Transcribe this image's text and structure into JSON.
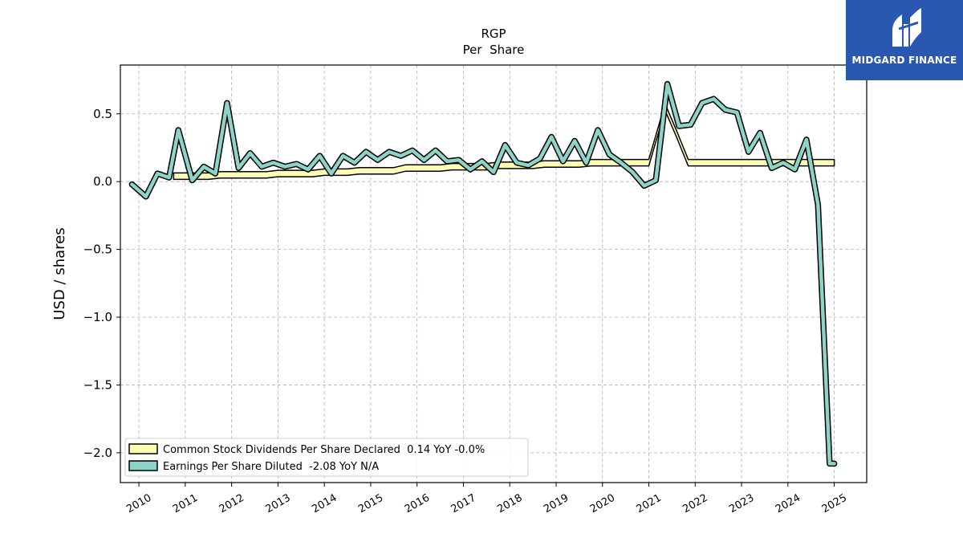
{
  "brand": {
    "name": "MIDGARD FINANCE",
    "color": "#2a58b0"
  },
  "chart_data": {
    "type": "line",
    "title": "RGP",
    "subtitle": "Per  Share",
    "xlabel": "",
    "ylabel": "USD / shares",
    "xlim": [
      2009.6,
      2025.7
    ],
    "ylim": [
      -2.22,
      0.86
    ],
    "x_ticks": [
      2010,
      2011,
      2012,
      2013,
      2014,
      2015,
      2016,
      2017,
      2018,
      2019,
      2020,
      2021,
      2022,
      2023,
      2024,
      2025
    ],
    "y_ticks": [
      0.5,
      0.0,
      -0.5,
      -1.0,
      -1.5,
      -2.0
    ],
    "y_tick_labels": [
      "0.5",
      "0.0",
      "−0.5",
      "−1.0",
      "−1.5",
      "−2.0"
    ],
    "grid": true,
    "legend_position": "lower-left",
    "series": [
      {
        "name": "Common Stock Dividends Per Share Declared  0.14 YoY -0.0%",
        "color": "#ffffb3",
        "points": [
          [
            2010.75,
            0.04
          ],
          [
            2011.0,
            0.04
          ],
          [
            2011.25,
            0.04
          ],
          [
            2011.5,
            0.04
          ],
          [
            2011.75,
            0.05
          ],
          [
            2012.0,
            0.05
          ],
          [
            2012.25,
            0.05
          ],
          [
            2012.5,
            0.05
          ],
          [
            2012.75,
            0.05
          ],
          [
            2013.0,
            0.06
          ],
          [
            2013.25,
            0.06
          ],
          [
            2013.5,
            0.06
          ],
          [
            2013.75,
            0.06
          ],
          [
            2014.0,
            0.07
          ],
          [
            2014.25,
            0.07
          ],
          [
            2014.5,
            0.07
          ],
          [
            2014.75,
            0.08
          ],
          [
            2015.0,
            0.08
          ],
          [
            2015.25,
            0.08
          ],
          [
            2015.5,
            0.08
          ],
          [
            2015.75,
            0.1
          ],
          [
            2016.0,
            0.1
          ],
          [
            2016.25,
            0.1
          ],
          [
            2016.5,
            0.1
          ],
          [
            2016.75,
            0.11
          ],
          [
            2017.0,
            0.11
          ],
          [
            2017.25,
            0.11
          ],
          [
            2017.5,
            0.11
          ],
          [
            2017.75,
            0.12
          ],
          [
            2018.0,
            0.12
          ],
          [
            2018.25,
            0.12
          ],
          [
            2018.5,
            0.12
          ],
          [
            2018.75,
            0.13
          ],
          [
            2019.0,
            0.13
          ],
          [
            2019.25,
            0.13
          ],
          [
            2019.5,
            0.13
          ],
          [
            2019.75,
            0.14
          ],
          [
            2020.0,
            0.14
          ],
          [
            2020.25,
            0.14
          ],
          [
            2020.5,
            0.14
          ],
          [
            2020.75,
            0.14
          ],
          [
            2021.0,
            0.14
          ],
          [
            2021.35,
            0.55
          ],
          [
            2021.6,
            0.35
          ],
          [
            2021.85,
            0.14
          ],
          [
            2022.0,
            0.14
          ],
          [
            2022.25,
            0.14
          ],
          [
            2022.5,
            0.14
          ],
          [
            2022.75,
            0.14
          ],
          [
            2023.0,
            0.14
          ],
          [
            2023.25,
            0.14
          ],
          [
            2023.5,
            0.14
          ],
          [
            2023.75,
            0.14
          ],
          [
            2024.0,
            0.14
          ],
          [
            2024.25,
            0.14
          ],
          [
            2024.5,
            0.14
          ],
          [
            2024.75,
            0.14
          ],
          [
            2025.0,
            0.14
          ]
        ]
      },
      {
        "name": "Earnings Per Share Diluted  -2.08 YoY N/A",
        "color": "#8dd3c7",
        "points": [
          [
            2009.85,
            -0.02
          ],
          [
            2010.15,
            -0.11
          ],
          [
            2010.4,
            0.06
          ],
          [
            2010.65,
            0.03
          ],
          [
            2010.85,
            0.38
          ],
          [
            2011.15,
            0.01
          ],
          [
            2011.4,
            0.11
          ],
          [
            2011.65,
            0.06
          ],
          [
            2011.9,
            0.58
          ],
          [
            2012.15,
            0.1
          ],
          [
            2012.4,
            0.21
          ],
          [
            2012.65,
            0.11
          ],
          [
            2012.9,
            0.14
          ],
          [
            2013.15,
            0.11
          ],
          [
            2013.4,
            0.13
          ],
          [
            2013.65,
            0.09
          ],
          [
            2013.9,
            0.19
          ],
          [
            2014.15,
            0.06
          ],
          [
            2014.4,
            0.19
          ],
          [
            2014.65,
            0.14
          ],
          [
            2014.9,
            0.22
          ],
          [
            2015.15,
            0.16
          ],
          [
            2015.4,
            0.22
          ],
          [
            2015.65,
            0.19
          ],
          [
            2015.9,
            0.23
          ],
          [
            2016.15,
            0.16
          ],
          [
            2016.4,
            0.23
          ],
          [
            2016.65,
            0.15
          ],
          [
            2016.9,
            0.16
          ],
          [
            2017.15,
            0.09
          ],
          [
            2017.4,
            0.15
          ],
          [
            2017.65,
            0.07
          ],
          [
            2017.9,
            0.27
          ],
          [
            2018.15,
            0.14
          ],
          [
            2018.4,
            0.12
          ],
          [
            2018.65,
            0.17
          ],
          [
            2018.9,
            0.33
          ],
          [
            2019.15,
            0.15
          ],
          [
            2019.4,
            0.3
          ],
          [
            2019.65,
            0.14
          ],
          [
            2019.9,
            0.38
          ],
          [
            2020.15,
            0.2
          ],
          [
            2020.4,
            0.14
          ],
          [
            2020.65,
            0.07
          ],
          [
            2020.9,
            -0.03
          ],
          [
            2021.15,
            0.01
          ],
          [
            2021.4,
            0.72
          ],
          [
            2021.65,
            0.41
          ],
          [
            2021.9,
            0.42
          ],
          [
            2022.15,
            0.58
          ],
          [
            2022.4,
            0.61
          ],
          [
            2022.65,
            0.53
          ],
          [
            2022.9,
            0.51
          ],
          [
            2023.15,
            0.22
          ],
          [
            2023.4,
            0.36
          ],
          [
            2023.65,
            0.1
          ],
          [
            2023.9,
            0.14
          ],
          [
            2024.15,
            0.09
          ],
          [
            2024.4,
            0.31
          ],
          [
            2024.65,
            -0.17
          ],
          [
            2024.9,
            -2.08
          ],
          [
            2025.0,
            -2.08
          ]
        ]
      }
    ]
  }
}
